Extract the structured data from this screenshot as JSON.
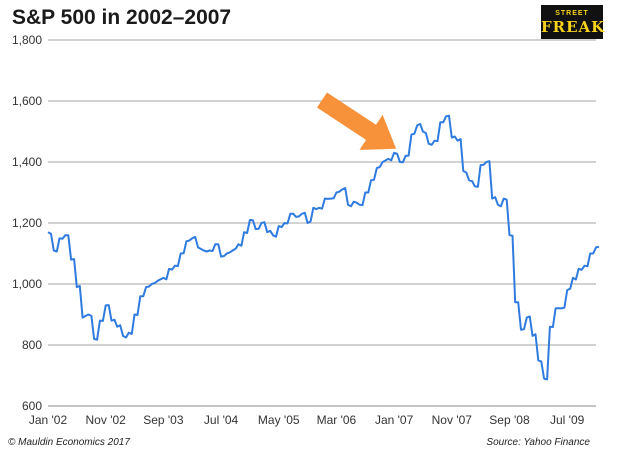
{
  "header": {
    "title": "S&P 500 in 2002–2007"
  },
  "logo": {
    "line1": "STREET",
    "line2": "FREAK"
  },
  "footer": {
    "left": "© Mauldin Economics 2017",
    "right": "Source: Yahoo Finance"
  },
  "colors": {
    "line": "#2f7be0",
    "arrow": "#f7923a",
    "grid": "#a6a6a6"
  },
  "chart_data": {
    "type": "line",
    "title": "S&P 500 in 2002–2007",
    "xlabel": "",
    "ylabel": "",
    "ylim": [
      600,
      1800
    ],
    "xlim": [
      "2002-01",
      "2009-12"
    ],
    "grid": "horizontal",
    "yticks": [
      600,
      800,
      1000,
      1200,
      1400,
      1600,
      1800
    ],
    "ytick_labels": [
      "600",
      "800",
      "1,000",
      "1,200",
      "1,400",
      "1,600",
      "1,800"
    ],
    "xtick_labels": [
      {
        "label": "Jan '02",
        "date": "2002-01"
      },
      {
        "label": "Nov '02",
        "date": "2002-11"
      },
      {
        "label": "Sep '03",
        "date": "2003-09"
      },
      {
        "label": "Jul '04",
        "date": "2004-07"
      },
      {
        "label": "May '05",
        "date": "2005-05"
      },
      {
        "label": "Mar '06",
        "date": "2006-03"
      },
      {
        "label": "Jan '07",
        "date": "2007-01"
      },
      {
        "label": "Nov '07",
        "date": "2007-11"
      },
      {
        "label": "Sep '08",
        "date": "2008-09"
      },
      {
        "label": "Jul '09",
        "date": "2009-07"
      }
    ],
    "annotation": {
      "type": "arrow",
      "date": "2007-01",
      "value": 1430
    },
    "series": [
      {
        "x": [
          "2002-01",
          "2002-02",
          "2002-03",
          "2002-04",
          "2002-05",
          "2002-06",
          "2002-07",
          "2002-08",
          "2002-09",
          "2002-10",
          "2002-11",
          "2002-12",
          "2003-01",
          "2003-02",
          "2003-03",
          "2003-04",
          "2003-05",
          "2003-06",
          "2003-07",
          "2003-08",
          "2003-09",
          "2003-10",
          "2003-11",
          "2003-12",
          "2004-01",
          "2004-02",
          "2004-03",
          "2004-04",
          "2004-05",
          "2004-06",
          "2004-07",
          "2004-08",
          "2004-09",
          "2004-10",
          "2004-11",
          "2004-12",
          "2005-01",
          "2005-02",
          "2005-03",
          "2005-04",
          "2005-05",
          "2005-06",
          "2005-07",
          "2005-08",
          "2005-09",
          "2005-10",
          "2005-11",
          "2005-12",
          "2006-01",
          "2006-02",
          "2006-03",
          "2006-04",
          "2006-05",
          "2006-06",
          "2006-07",
          "2006-08",
          "2006-09",
          "2006-10",
          "2006-11",
          "2006-12",
          "2007-01",
          "2007-02",
          "2007-03",
          "2007-04",
          "2007-05",
          "2007-06",
          "2007-07",
          "2007-08",
          "2007-09",
          "2007-10",
          "2007-11",
          "2007-12",
          "2008-01",
          "2008-02",
          "2008-03",
          "2008-04",
          "2008-05",
          "2008-06",
          "2008-07",
          "2008-08",
          "2008-09",
          "2008-10",
          "2008-11",
          "2008-12",
          "2009-01",
          "2009-02",
          "2009-03",
          "2009-04",
          "2009-05",
          "2009-06",
          "2009-07",
          "2009-08",
          "2009-09",
          "2009-10",
          "2009-11",
          "2009-12"
        ],
        "values": [
          1170,
          1110,
          1150,
          1160,
          1080,
          990,
          890,
          900,
          820,
          880,
          930,
          880,
          860,
          830,
          840,
          900,
          960,
          990,
          1000,
          1010,
          1020,
          1050,
          1060,
          1100,
          1140,
          1150,
          1120,
          1110,
          1110,
          1130,
          1090,
          1100,
          1110,
          1130,
          1170,
          1210,
          1180,
          1200,
          1170,
          1160,
          1190,
          1200,
          1230,
          1220,
          1230,
          1200,
          1250,
          1250,
          1280,
          1280,
          1300,
          1310,
          1260,
          1270,
          1260,
          1300,
          1340,
          1380,
          1400,
          1410,
          1430,
          1400,
          1420,
          1490,
          1520,
          1500,
          1460,
          1470,
          1530,
          1550,
          1480,
          1470,
          1370,
          1340,
          1320,
          1390,
          1400,
          1280,
          1260,
          1280,
          1160,
          940,
          850,
          890,
          830,
          750,
          690,
          860,
          920,
          920,
          980,
          1020,
          1050,
          1060,
          1100,
          1120
        ]
      }
    ]
  }
}
